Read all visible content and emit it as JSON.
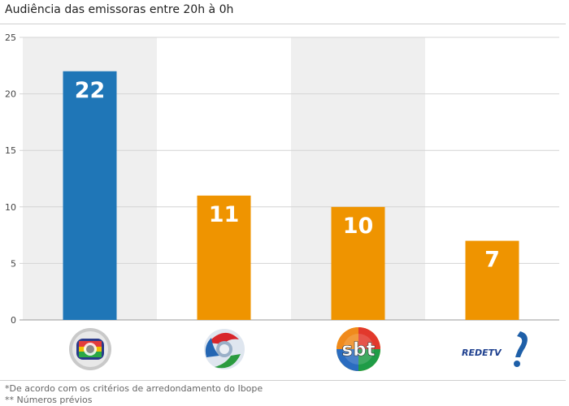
{
  "chart_data": {
    "type": "bar",
    "title": "Audiência das emissoras entre 20h à 0h",
    "categories": [
      "Globo",
      "Record",
      "SBT",
      "RedeTV!"
    ],
    "values": [
      22,
      11,
      10,
      7
    ],
    "data_labels": [
      "22",
      "11",
      "10",
      "7"
    ],
    "bar_colors": [
      "#1f76b7",
      "#ef9400",
      "#ef9400",
      "#ef9400"
    ],
    "ylim": [
      0,
      25
    ],
    "yticks": [
      0,
      5,
      10,
      15,
      20,
      25
    ],
    "grid": true,
    "xlabel": "",
    "ylabel": ""
  },
  "logos": {
    "globo": "globo-logo",
    "record": "record-logo",
    "sbt": {
      "icon": "sbt-logo",
      "text": "sbt"
    },
    "redetv": {
      "icon": "redetv-logo",
      "text": "REDETV"
    }
  },
  "footnotes": {
    "line1": "*De acordo com os critérios de arredondamento do Ibope",
    "line2": "** Números prévios"
  },
  "colors": {
    "blue": "#1f76b7",
    "orange": "#ef9400",
    "band": "#efefef",
    "grid": "#d4d4d4"
  }
}
